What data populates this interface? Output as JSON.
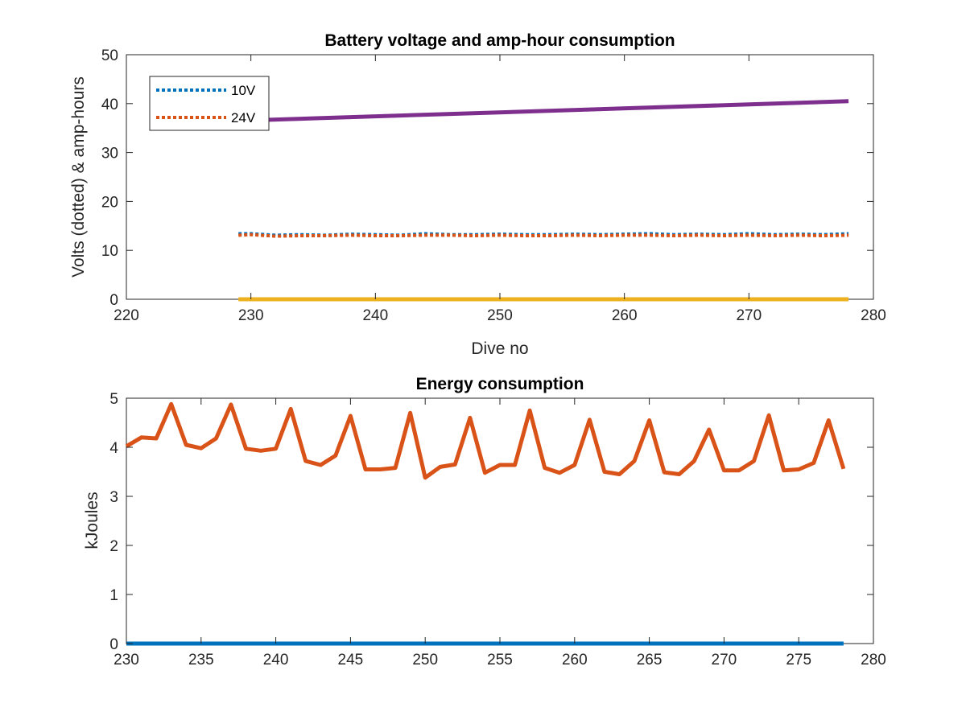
{
  "colors": {
    "blue": "#0072BD",
    "orange": "#D95319",
    "yellow": "#EDB120",
    "purple": "#7E2F8E",
    "axis": "#262626"
  },
  "chart_data": [
    {
      "type": "line",
      "title": "Battery voltage and amp-hour consumption",
      "xlabel": "Dive no",
      "ylabel": "Volts (dotted) & amp-hours",
      "xlim": [
        220,
        280
      ],
      "ylim": [
        0,
        50
      ],
      "xticks": [
        220,
        230,
        240,
        250,
        260,
        270,
        280
      ],
      "yticks": [
        0,
        10,
        20,
        30,
        40,
        50
      ],
      "legend": {
        "position": "top-left",
        "entries": [
          "10V",
          "24V"
        ]
      },
      "grid": false,
      "series": [
        {
          "name": "10V",
          "style": "dotted",
          "color": "blue",
          "x": [
            229,
            230,
            232,
            234,
            236,
            238,
            240,
            242,
            244,
            246,
            248,
            250,
            252,
            254,
            256,
            258,
            260,
            262,
            264,
            266,
            268,
            270,
            272,
            274,
            276,
            278
          ],
          "y": [
            13.4,
            13.4,
            13.1,
            13.2,
            13.1,
            13.3,
            13.2,
            13.1,
            13.4,
            13.2,
            13.2,
            13.3,
            13.2,
            13.2,
            13.3,
            13.2,
            13.3,
            13.4,
            13.2,
            13.3,
            13.2,
            13.4,
            13.2,
            13.3,
            13.2,
            13.4
          ]
        },
        {
          "name": "24V",
          "style": "dotted",
          "color": "orange",
          "x": [
            229,
            230,
            232,
            234,
            236,
            238,
            240,
            242,
            244,
            246,
            248,
            250,
            252,
            254,
            256,
            258,
            260,
            262,
            264,
            266,
            268,
            270,
            272,
            274,
            276,
            278
          ],
          "y": [
            13.1,
            13.2,
            12.9,
            13.0,
            13.0,
            13.1,
            13.0,
            13.0,
            13.1,
            13.1,
            13.0,
            13.1,
            13.0,
            13.0,
            13.1,
            13.0,
            13.1,
            13.1,
            13.0,
            13.1,
            13.0,
            13.1,
            13.0,
            13.1,
            13.0,
            13.1
          ]
        },
        {
          "style": "solid",
          "color": "yellow",
          "x": [
            229,
            278
          ],
          "y": [
            0,
            0
          ]
        },
        {
          "style": "solid",
          "color": "purple",
          "x": [
            229,
            278
          ],
          "y": [
            36.5,
            40.5
          ]
        }
      ]
    },
    {
      "type": "line",
      "title": "Energy consumption",
      "xlabel": "",
      "ylabel": "kJoules",
      "xlim": [
        230,
        280
      ],
      "ylim": [
        0,
        5
      ],
      "xticks": [
        230,
        235,
        240,
        245,
        250,
        255,
        260,
        265,
        270,
        275,
        280
      ],
      "yticks": [
        0,
        1,
        2,
        3,
        4,
        5
      ],
      "grid": false,
      "series": [
        {
          "style": "solid",
          "color": "orange",
          "x": [
            230,
            231,
            232,
            233,
            234,
            235,
            236,
            237,
            238,
            239,
            240,
            241,
            242,
            243,
            244,
            245,
            246,
            247,
            248,
            249,
            250,
            251,
            252,
            253,
            254,
            255,
            256,
            257,
            258,
            259,
            260,
            261,
            262,
            263,
            264,
            265,
            266,
            267,
            268,
            269,
            270,
            271,
            272,
            273,
            274,
            275,
            276,
            277,
            278
          ],
          "y": [
            4.02,
            4.2,
            4.18,
            4.88,
            4.05,
            3.98,
            4.18,
            4.87,
            3.97,
            3.93,
            3.97,
            4.78,
            3.72,
            3.64,
            3.83,
            4.64,
            3.55,
            3.55,
            3.58,
            4.7,
            3.38,
            3.6,
            3.65,
            4.6,
            3.48,
            3.64,
            3.64,
            4.75,
            3.58,
            3.48,
            3.64,
            4.56,
            3.5,
            3.45,
            3.72,
            4.55,
            3.49,
            3.45,
            3.72,
            4.36,
            3.53,
            3.53,
            3.72,
            4.65,
            3.53,
            3.55,
            3.68,
            4.55,
            3.56
          ]
        },
        {
          "style": "solid",
          "color": "blue",
          "x": [
            230,
            278
          ],
          "y": [
            0,
            0
          ]
        }
      ]
    }
  ]
}
